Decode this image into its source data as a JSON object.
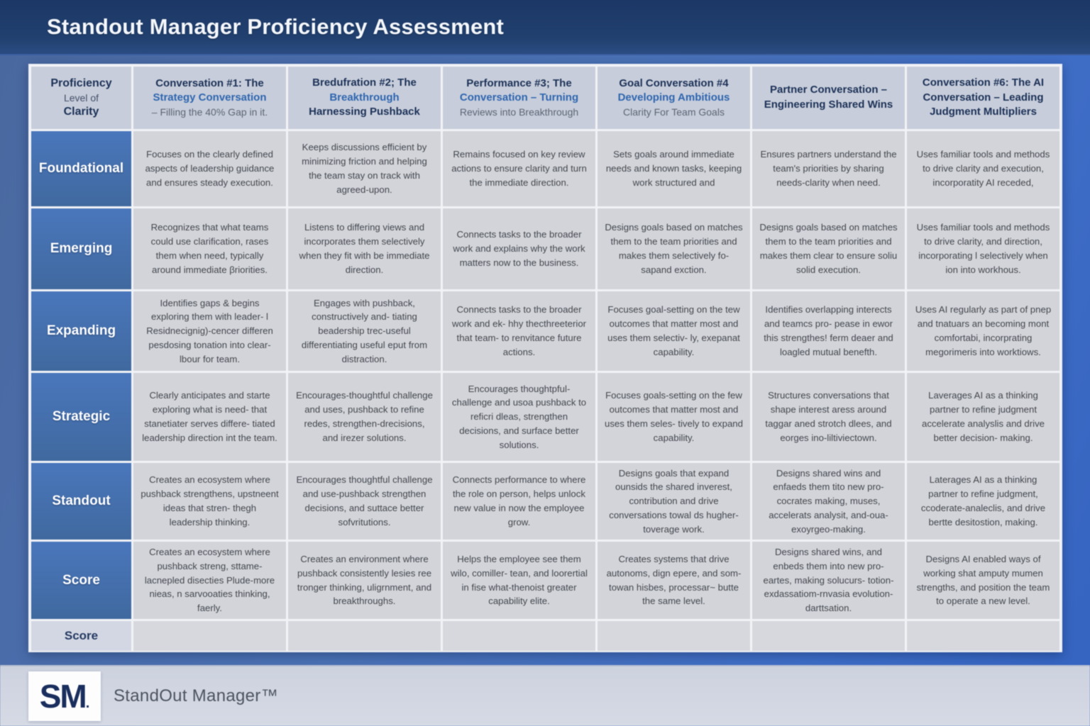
{
  "page_title": "Standout Manager Proficiency Assessment",
  "footer": {
    "logo": "SM",
    "logo_dot": ".",
    "brand": "StandOut Manager™"
  },
  "table": {
    "corner": {
      "lines": [
        {
          "text": "Proficiency",
          "style": "dark"
        },
        {
          "text": "Level of",
          "style": "gray"
        },
        {
          "text": "Clarity",
          "style": "dark"
        }
      ]
    },
    "columns": [
      {
        "segments": [
          {
            "text": "Conversation #1: The",
            "style": "dark"
          },
          {
            "text": "Strategy Conversation",
            "style": "blue"
          },
          {
            "text": "– Filling the 40% Gap in it.",
            "style": "gray"
          }
        ]
      },
      {
        "segments": [
          {
            "text": "Bredufration #2; The",
            "style": "dark"
          },
          {
            "text": "Breakthrough",
            "style": "blue"
          },
          {
            "text": "Harnessing  Pushback",
            "style": "dark"
          }
        ]
      },
      {
        "segments": [
          {
            "text": "Performance #3; The",
            "style": "dark"
          },
          {
            "text": "Conversation – Turning",
            "style": "blue"
          },
          {
            "text": "Reviews into Breakthrough",
            "style": "gray"
          }
        ]
      },
      {
        "segments": [
          {
            "text": "Goal Conversation #4",
            "style": "dark"
          },
          {
            "text": "Developing Ambitious",
            "style": "blue"
          },
          {
            "text": "Clarity For Team Goals",
            "style": "gray"
          }
        ]
      },
      {
        "segments": [
          {
            "text": "Partner Conversation –",
            "style": "dark"
          },
          {
            "text": "Engineering Shared Wins",
            "style": "dark"
          }
        ]
      },
      {
        "segments": [
          {
            "text": "Conversation #6: The AI",
            "style": "dark"
          },
          {
            "text": "Conversation – Leading",
            "style": "dark"
          },
          {
            "text": "Judgment Multipliers",
            "style": "dark"
          }
        ]
      }
    ],
    "rows": [
      {
        "label": "Foundational",
        "label_style": "blue",
        "cells": [
          "Focuses on the clearly defined aspects of leadership guidance and ensures steady execution.",
          "Keeps discussions efficient by minimizing friction and helping the team stay on track with agreed-upon.",
          "Remains focused on key review actions to ensure clarity and turn the immediate direction.",
          "Sets goals around immediate needs and known tasks, keeping work structured and",
          "Ensures partners understand the team's priorities by sharing needs-clarity when need.",
          "Uses familiar tools and methods to drive clarity and execution, incorporatity AI receded,"
        ]
      },
      {
        "label": "Emerging",
        "label_style": "blue",
        "cells": [
          "Recognizes that what teams could use clarification, rases them when need, typically around immediate βriorities.",
          "Listens to differing views and incorporates them selectively when they fit with be immediate direction.",
          "Connects tasks to the broader work and explains why the work matters now to the business.",
          "Designs goals based on matches them to the team priorities and makes them selectively fo- sapand exction.",
          "Designs goals based on matches them to the team priorities and makes them clear to ensure soliu solid execution.",
          "Uses familiar tools and methods to drive clarity, and direction, incorporating l selectively when ion into workhous."
        ]
      },
      {
        "label": "Expanding",
        "label_style": "blue",
        "cells": [
          "Identifies gaps & begins exploring them with leader- l Residnecignig)-cencer differen pesdosing tonation into clear- lbour for team.",
          "Engages with pushback, constructively and- tiating beadership trec-useful differentiating useful eput from distraction.",
          "Connects tasks to the broader work and ek- hhy thecthreeterior that team- to renvitance future actions.",
          "Focuses goal-setting on the tew outcomes that matter most and uses them selectiv- ly, exepanat capability.",
          "Identifies overlapping interects and teamcs pro- pease in ewor this strengthes! ferm deaer and loagled mutual benefth.",
          "Uses AI regularly as part of pnep and tnatuars an becoming mont comfortabi, incorprating megorimeris into worktiows."
        ]
      },
      {
        "label": "Strategic",
        "label_style": "blue",
        "cells": [
          "Clearly anticipates and starte exploring what is need- that stanetiater serves differe- tiated leadership direction int the team.",
          "Encourages-thoughtful challenge and uses, pushback to refine redes, strengthen-drecisions, and irezer solutions.",
          "Encourages thoughtpful- challenge and usoa pushback to reficri dleas, strengthen decisions, and surface better solutions.",
          "Focuses goals-setting on the few outcomes that matter most and uses them seles- tively to expand capability.",
          "Structures conversations that shape interest aress around taggar aned strotch dlees, and eorges ino-liltiviectown.",
          "Laverages AI as a thinking partner to refine judgment accelerate analyslis and drive better decision- making."
        ]
      },
      {
        "label": "Standout",
        "label_style": "blue",
        "cells": [
          "Creates an ecosystem where pushback strengthens, upstneent ideas that stren- thegh leadership thinking.",
          "Encourages thoughtful challenge and use-pushback strengthen decisions, and suttace better sofvritutions.",
          "Connects performance to where the role on person, helps unlock new value in now the employee grow.",
          "Designs goals that expand ounsids the shared inverest, contribution and drive conversations towal ds hugher-toverage work.",
          "Designs shared wins and enfaeds them tito new pro- cocrates making, muses, accelerats analysit, and-oua- exoyrgeo-making.",
          "Laterages AI as a thinking partner to refine judgment, ccoderate-analeclis, and drive bertte desitostion, making."
        ]
      },
      {
        "label": "Score",
        "label_style": "blue",
        "cells": [
          "Creates an ecosystem where pushback streng, sttame-lacnepled disecties Plude-more nieas, n sarvooaties thinking, faerly.",
          "Creates an environment where pushback consistently lesies ree tronger thinking, uligrnment,  and breakthroughs.",
          "Helps the employee see them wilo, comiller- tean, and loorertial in fise what-thenoist greater capability elite.",
          "Creates systems that drive autonoms, dign epere, and som-towan hisbes, processar~ butte the same level.",
          "Designs shared wins, and enbeds them into new pro- eartes, making solucurs- totion-exdassatiom-rnvasia evolution-darttsation.",
          "Designs AI enabled ways of working shat amputy mumen strengths, and position the team to operate a new level."
        ]
      },
      {
        "label": "Score",
        "label_style": "plain",
        "cells": [
          "",
          "",
          "",
          "",
          "",
          ""
        ]
      }
    ]
  },
  "colors": {
    "header_bar": "#1c3766",
    "accent_blue": "#2f66b0",
    "row_label_blue": "#4672b4",
    "header_cell": "#c7cdda",
    "body_cell": "#d2d4d9",
    "footer_bg": "#d2d6e2",
    "logo_navy": "#1b2f5e"
  }
}
